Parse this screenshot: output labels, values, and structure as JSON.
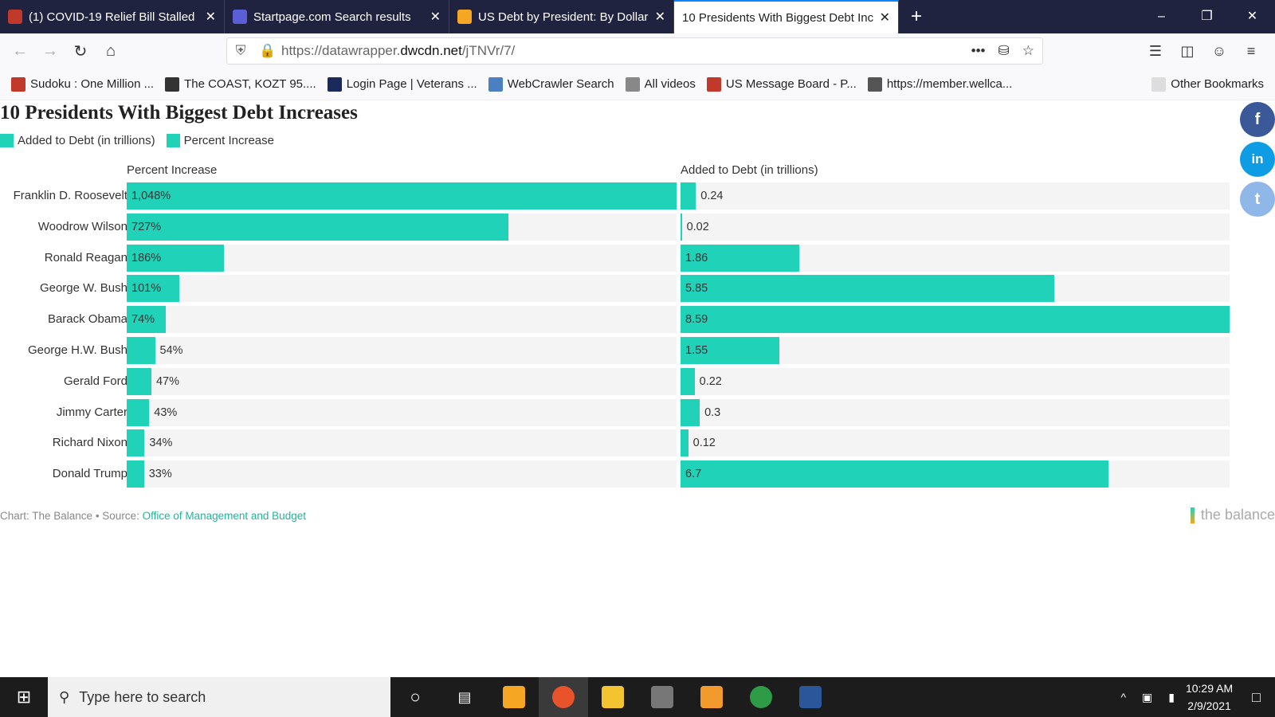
{
  "browser": {
    "tabs": [
      {
        "label": "(1) COVID-19 Relief Bill Stalled",
        "color": "#c0392b",
        "active": false
      },
      {
        "label": "Startpage.com Search results",
        "color": "#5a5fd6",
        "active": false
      },
      {
        "label": "US Debt by President: By Dollar",
        "color": "#f5a623",
        "active": false
      },
      {
        "label": "10 Presidents With Biggest Debt Increases",
        "color": "#ffffff",
        "active": true
      }
    ],
    "url_prefix": "https://datawrapper.",
    "url_domain": "dwcdn.net",
    "url_suffix": "/jTNVr/7/",
    "bookmarks": [
      "Sudoku : One Million ...",
      "The COAST, KOZT 95....",
      "Login Page | Veterans ...",
      "WebCrawler Search",
      "All videos",
      "US Message Board - P...",
      "https://member.wellca..."
    ],
    "other_bookmarks": "Other Bookmarks"
  },
  "chart_data": {
    "type": "bar",
    "title": "10 Presidents With Biggest Debt Increases",
    "legend": [
      "Added to Debt (in trillions)",
      "Percent Increase"
    ],
    "categories": [
      "Franklin D. Roosevelt",
      "Woodrow Wilson",
      "Ronald Reagan",
      "George W. Bush",
      "Barack Obama",
      "George H.W. Bush",
      "Gerald Ford",
      "Jimmy Carter",
      "Richard Nixon",
      "Donald Trump"
    ],
    "series": [
      {
        "name": "Percent Increase",
        "values": [
          1048,
          727,
          186,
          101,
          74,
          54,
          47,
          43,
          34,
          33
        ],
        "labels": [
          "1,048%",
          "727%",
          "186%",
          "101%",
          "74%",
          "54%",
          "47%",
          "43%",
          "34%",
          "33%"
        ],
        "max": 1048
      },
      {
        "name": "Added to Debt (in trillions)",
        "values": [
          0.24,
          0.02,
          1.86,
          5.85,
          8.59,
          1.55,
          0.22,
          0.3,
          0.12,
          6.7
        ],
        "labels": [
          "0.24",
          "0.02",
          "1.86",
          "5.85",
          "8.59",
          "1.55",
          "0.22",
          "0.3",
          "0.12",
          "6.7"
        ],
        "max": 8.59
      }
    ],
    "color": "#20d3b8",
    "footer_prefix": "Chart: The Balance • Source: ",
    "footer_link": "Office of Management and Budget",
    "logo": "the balance"
  },
  "social": {
    "facebook": "f",
    "linkedin": "in",
    "twitter": "t"
  },
  "taskbar": {
    "search_placeholder": "Type here to search",
    "time": "10:29 AM",
    "date": "2/9/2021"
  }
}
